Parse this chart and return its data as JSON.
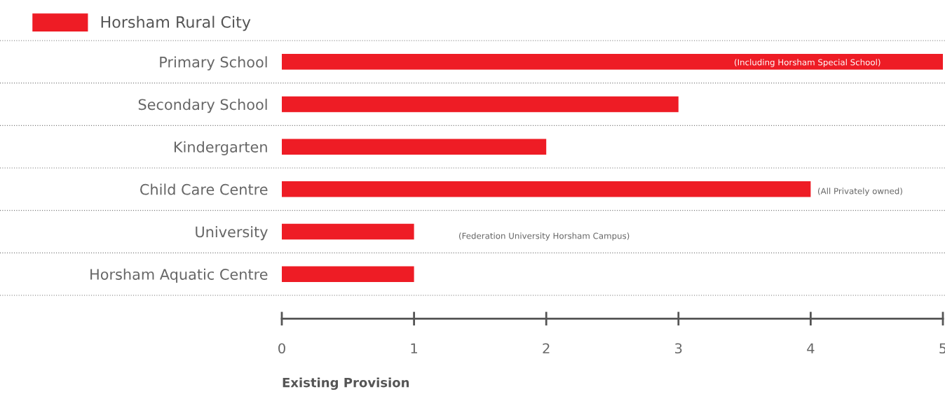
{
  "chart_data": {
    "type": "bar",
    "orientation": "horizontal",
    "xlabel": "Existing Provision",
    "categories": [
      "Primary School",
      "Secondary School",
      "Kindergarten",
      "Child Care Centre",
      "University",
      "Horsham Aquatic Centre"
    ],
    "series": [
      {
        "name": "Horsham Rural City",
        "color": "#ee1c25",
        "values": [
          5,
          3,
          2,
          4,
          1,
          1
        ]
      }
    ],
    "xlim": [
      0,
      5
    ],
    "xticks": [
      0,
      1,
      2,
      3,
      4,
      5
    ],
    "grid": "y",
    "legend": "top left",
    "annotations": [
      "(Including Horsham Special School)",
      "(All Privately owned)",
      "(Federation University Horsham Campus)"
    ]
  }
}
